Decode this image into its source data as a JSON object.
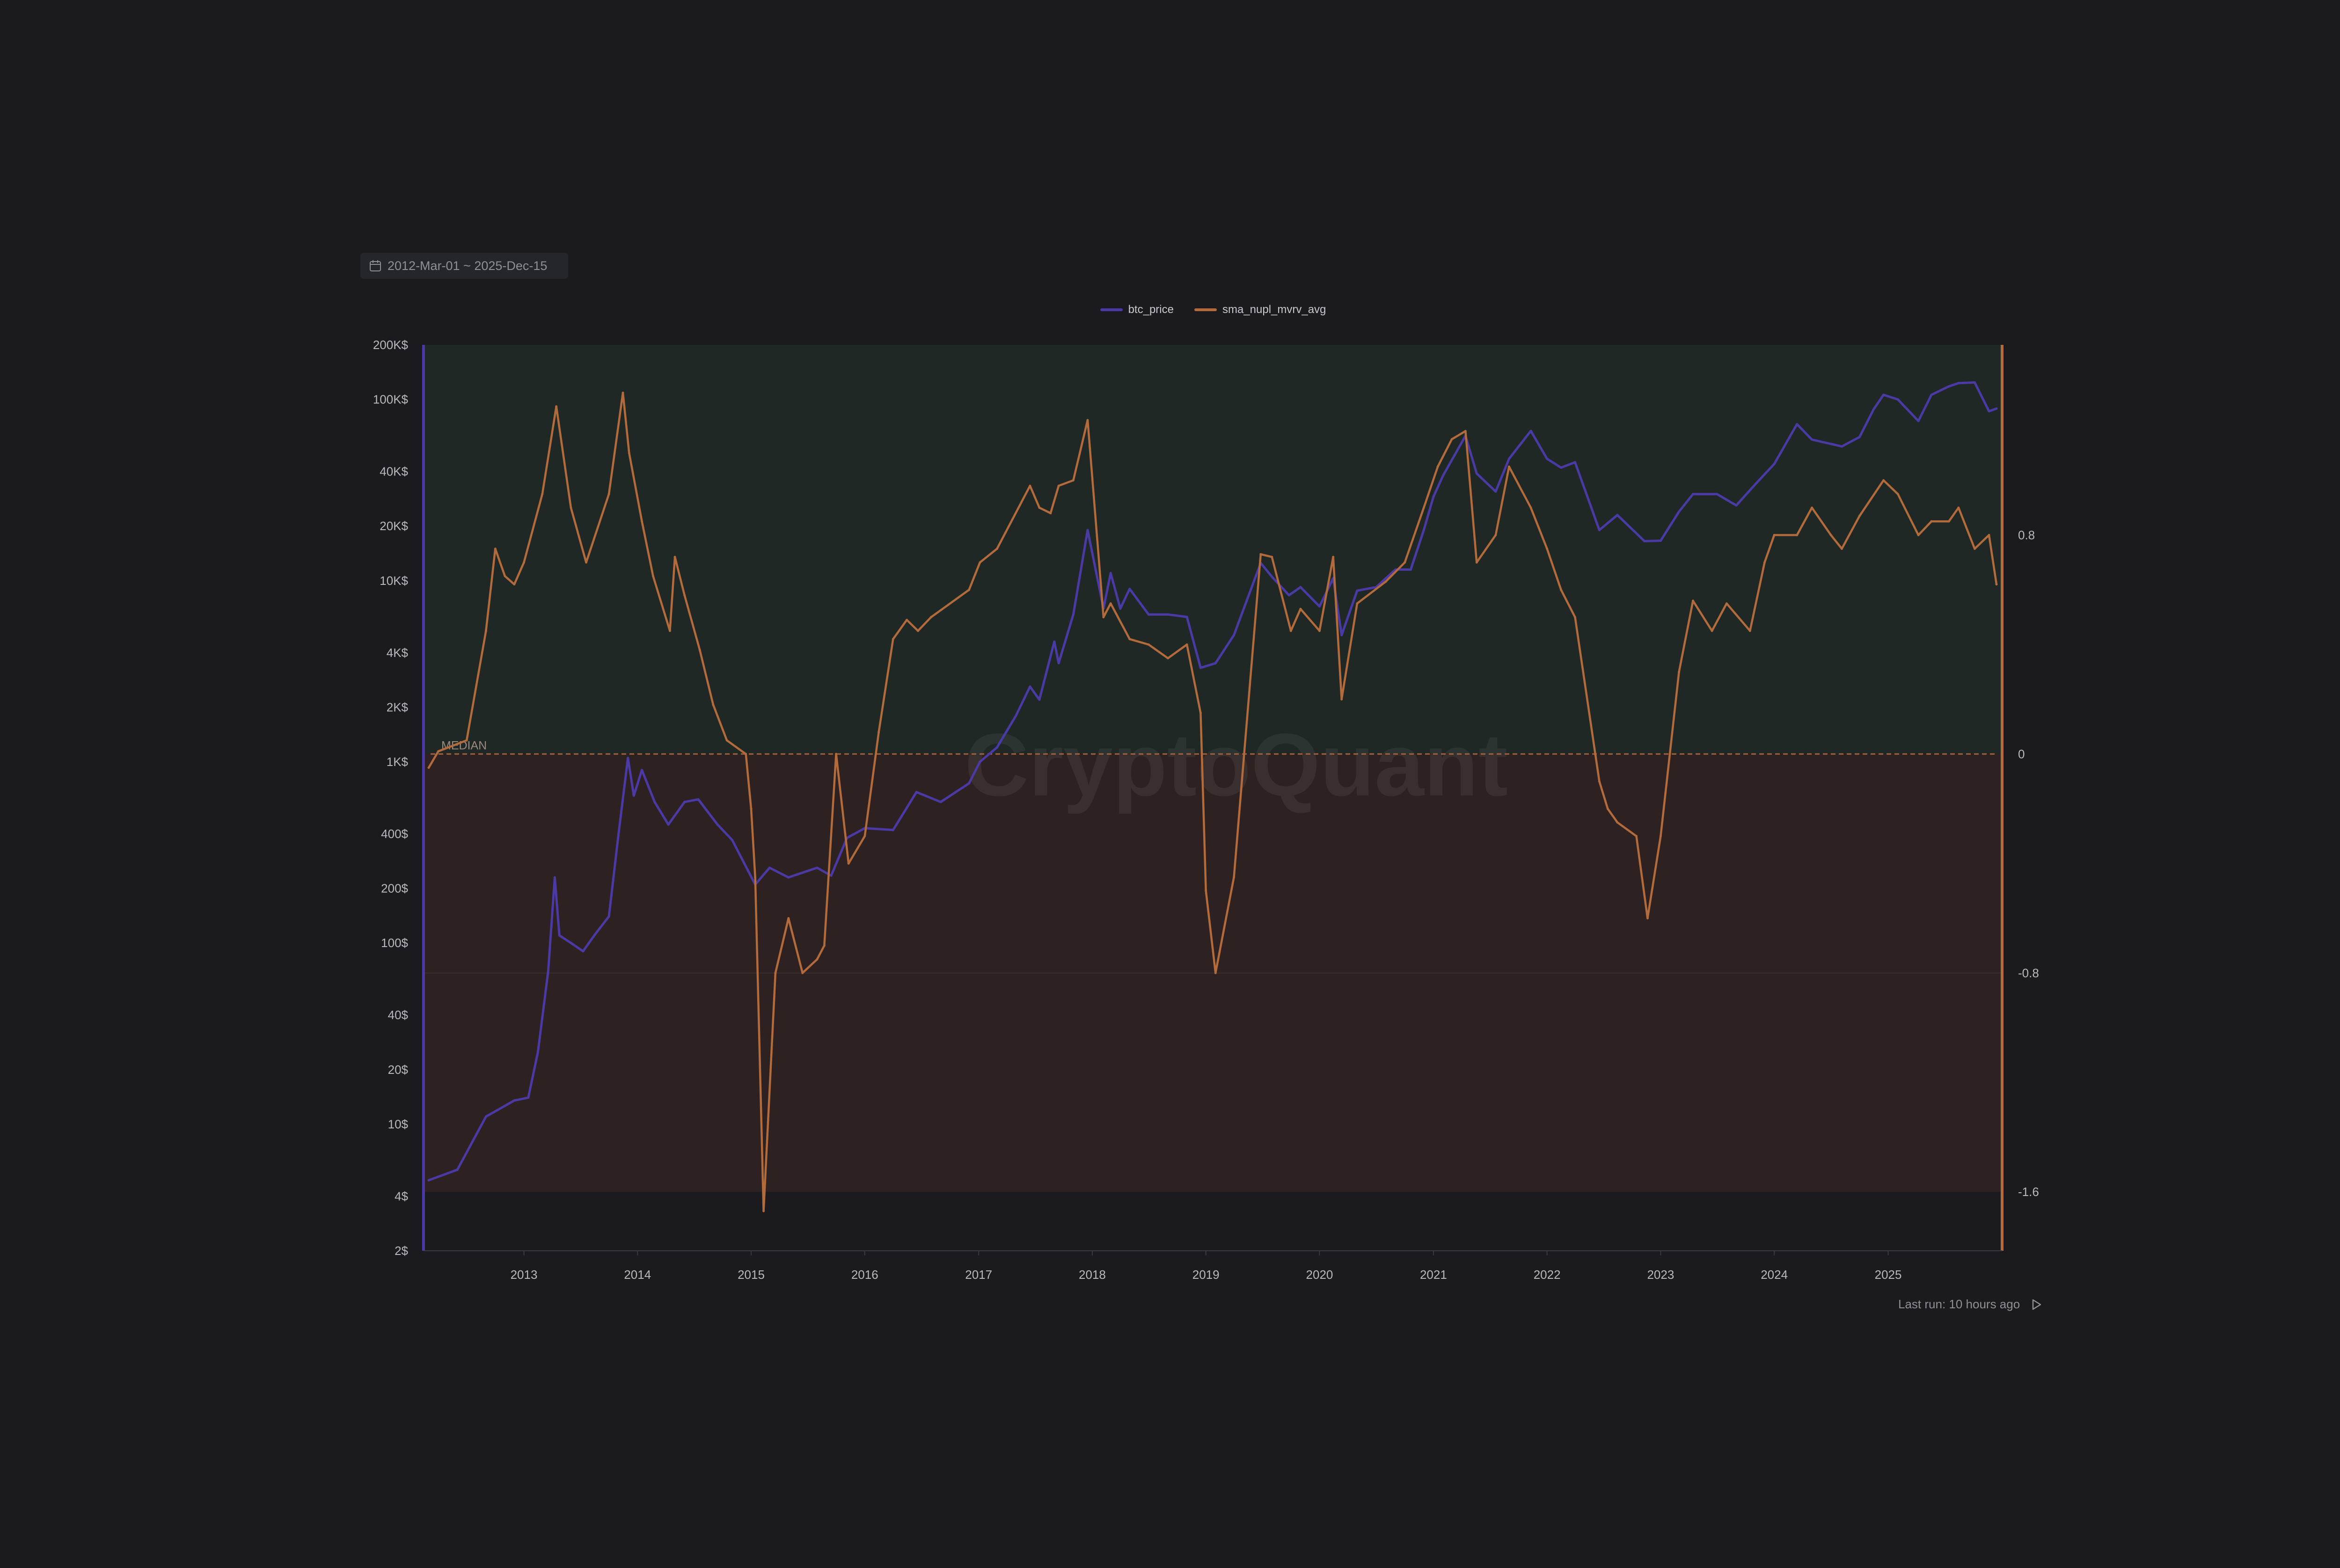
{
  "date_range": {
    "label": "2012-Mar-01 ~ 2025-Dec-15",
    "icon": "calendar-icon"
  },
  "footer": {
    "last_run": "Last run: 10 hours ago",
    "run_icon": "play-icon"
  },
  "colors": {
    "background": "#1a1a1f",
    "btc_price": "#4b3aa6",
    "sma_nupl_mvrv_avg": "#b36b3c",
    "zone_positive": "#1f2825",
    "zone_negative": "#2d2221",
    "median_line": "#a0603a"
  },
  "chart_data": {
    "type": "line",
    "watermark": "CryptoQuant",
    "legend": [
      "btc_price",
      "sma_nupl_mvrv_avg"
    ],
    "legend_position": "top-center",
    "x_ticks": [
      "2013",
      "2014",
      "2015",
      "2016",
      "2017",
      "2018",
      "2019",
      "2020",
      "2021",
      "2022",
      "2023",
      "2024",
      "2025"
    ],
    "xlim": [
      "2012-03-01",
      "2025-12-15"
    ],
    "y_left": {
      "scale": "log",
      "range": [
        2,
        200000
      ],
      "ticks": [
        2,
        4,
        10,
        20,
        40,
        100,
        200,
        400,
        1000,
        2000,
        4000,
        10000,
        20000,
        40000,
        100000,
        200000
      ],
      "tick_labels": [
        "2$",
        "4$",
        "10$",
        "20$",
        "40$",
        "100$",
        "200$",
        "400$",
        "1K$",
        "2K$",
        "4K$",
        "10K$",
        "20K$",
        "40K$",
        "100K$",
        "200K$"
      ]
    },
    "y_right": {
      "scale": "linear",
      "range": [
        -1.815,
        1.495
      ],
      "ticks": [
        0.8,
        0,
        -0.8,
        -1.6
      ],
      "tick_labels": [
        "0.8",
        "0",
        "-0.8",
        "-1.6"
      ]
    },
    "zones": [
      {
        "from": 0,
        "to": 1.495,
        "label": "positive"
      },
      {
        "from": -1.6,
        "to": 0,
        "label": "negative"
      }
    ],
    "median": {
      "label": "MEDIAN",
      "value": 0
    },
    "grid_lines": [
      -0.8
    ],
    "series": [
      {
        "name": "btc_price",
        "axis": "left",
        "x": [
          "2012-03-01",
          "2012-06-01",
          "2012-09-01",
          "2012-12-01",
          "2013-01-15",
          "2013-02-15",
          "2013-03-20",
          "2013-04-10",
          "2013-04-25",
          "2013-06-01",
          "2013-07-10",
          "2013-08-15",
          "2013-10-01",
          "2013-11-01",
          "2013-12-01",
          "2013-12-20",
          "2014-01-15",
          "2014-02-25",
          "2014-04-10",
          "2014-06-01",
          "2014-07-15",
          "2014-09-15",
          "2014-11-01",
          "2015-01-14",
          "2015-03-01",
          "2015-05-01",
          "2015-08-01",
          "2015-09-15",
          "2015-11-05",
          "2016-01-01",
          "2016-04-01",
          "2016-06-15",
          "2016-09-01",
          "2016-12-01",
          "2017-01-05",
          "2017-03-01",
          "2017-05-01",
          "2017-06-15",
          "2017-07-15",
          "2017-09-01",
          "2017-09-15",
          "2017-11-01",
          "2017-12-17",
          "2018-02-06",
          "2018-03-01",
          "2018-04-01",
          "2018-05-01",
          "2018-07-01",
          "2018-09-01",
          "2018-11-01",
          "2018-12-15",
          "2019-02-01",
          "2019-04-01",
          "2019-06-26",
          "2019-08-01",
          "2019-09-25",
          "2019-11-01",
          "2020-01-01",
          "2020-02-14",
          "2020-03-12",
          "2020-05-01",
          "2020-07-01",
          "2020-09-01",
          "2020-10-20",
          "2020-12-01",
          "2021-01-01",
          "2021-02-01",
          "2021-04-14",
          "2021-05-20",
          "2021-07-20",
          "2021-09-01",
          "2021-11-10",
          "2022-01-01",
          "2022-02-15",
          "2022-04-01",
          "2022-06-18",
          "2022-08-15",
          "2022-11-10",
          "2023-01-01",
          "2023-03-01",
          "2023-04-15",
          "2023-07-01",
          "2023-09-01",
          "2023-11-01",
          "2024-01-01",
          "2024-03-14",
          "2024-05-01",
          "2024-08-05",
          "2024-10-01",
          "2024-11-15",
          "2024-12-17",
          "2025-02-01",
          "2025-04-08",
          "2025-05-20",
          "2025-07-15",
          "2025-08-15",
          "2025-10-06",
          "2025-11-21",
          "2025-12-15"
        ],
        "values": [
          4.9,
          5.6,
          11,
          13.5,
          14,
          25,
          70,
          230,
          110,
          100,
          90,
          110,
          140,
          400,
          1050,
          650,
          900,
          600,
          450,
          600,
          620,
          450,
          370,
          210,
          260,
          230,
          260,
          235,
          380,
          430,
          420,
          680,
          600,
          760,
          1000,
          1200,
          1800,
          2600,
          2200,
          4600,
          3500,
          6500,
          19000,
          7000,
          11000,
          7000,
          9000,
          6500,
          6500,
          6300,
          3300,
          3500,
          5000,
          12500,
          10500,
          8300,
          9200,
          7200,
          10300,
          5000,
          8800,
          9200,
          11500,
          11500,
          19000,
          29000,
          38000,
          63000,
          39000,
          31000,
          47000,
          67000,
          47000,
          42000,
          45000,
          19000,
          23000,
          16500,
          16600,
          24000,
          30000,
          30000,
          26000,
          34000,
          44000,
          73000,
          60000,
          55000,
          62000,
          88000,
          106000,
          100000,
          76000,
          106000,
          118000,
          123000,
          124000,
          86000,
          89000
        ]
      },
      {
        "name": "sma_nupl_mvrv_avg",
        "axis": "right",
        "x": [
          "2012-03-01",
          "2012-04-01",
          "2012-07-01",
          "2012-09-01",
          "2012-10-01",
          "2012-11-01",
          "2012-12-01",
          "2013-01-01",
          "2013-03-01",
          "2013-04-15",
          "2013-06-01",
          "2013-07-20",
          "2013-10-01",
          "2013-11-15",
          "2013-12-05",
          "2014-01-15",
          "2014-02-20",
          "2014-04-15",
          "2014-05-01",
          "2014-06-01",
          "2014-07-20",
          "2014-09-01",
          "2014-10-15",
          "2014-12-15",
          "2015-01-01",
          "2015-01-14",
          "2015-02-10",
          "2015-03-20",
          "2015-05-01",
          "2015-06-15",
          "2015-08-01",
          "2015-08-24",
          "2015-10-01",
          "2015-11-10",
          "2016-01-01",
          "2016-02-15",
          "2016-04-01",
          "2016-05-15",
          "2016-06-20",
          "2016-08-01",
          "2016-12-01",
          "2017-01-05",
          "2017-03-01",
          "2017-06-15",
          "2017-07-15",
          "2017-08-20",
          "2017-09-15",
          "2017-11-01",
          "2017-12-17",
          "2018-02-06",
          "2018-03-01",
          "2018-05-01",
          "2018-07-01",
          "2018-09-01",
          "2018-11-01",
          "2018-12-15",
          "2019-01-01",
          "2019-02-01",
          "2019-04-01",
          "2019-06-26",
          "2019-08-01",
          "2019-10-01",
          "2019-11-01",
          "2020-01-01",
          "2020-02-14",
          "2020-03-12",
          "2020-05-01",
          "2020-08-01",
          "2020-10-01",
          "2020-12-01",
          "2021-01-15",
          "2021-03-01",
          "2021-04-14",
          "2021-05-20",
          "2021-07-20",
          "2021-09-01",
          "2021-11-10",
          "2022-01-01",
          "2022-02-15",
          "2022-04-01",
          "2022-06-18",
          "2022-07-15",
          "2022-08-15",
          "2022-10-15",
          "2022-11-20",
          "2023-01-01",
          "2023-03-01",
          "2023-04-15",
          "2023-06-15",
          "2023-08-01",
          "2023-10-15",
          "2023-12-01",
          "2024-01-01",
          "2024-03-14",
          "2024-05-01",
          "2024-07-01",
          "2024-08-05",
          "2024-10-01",
          "2024-12-17",
          "2025-02-01",
          "2025-04-08",
          "2025-05-20",
          "2025-07-15",
          "2025-08-15",
          "2025-10-06",
          "2025-11-21",
          "2025-12-15"
        ],
        "values": [
          -0.05,
          0.01,
          0.05,
          0.45,
          0.75,
          0.65,
          0.62,
          0.7,
          0.95,
          1.27,
          0.9,
          0.7,
          0.95,
          1.32,
          1.1,
          0.85,
          0.65,
          0.45,
          0.72,
          0.58,
          0.38,
          0.18,
          0.05,
          0.0,
          -0.2,
          -0.45,
          -1.67,
          -0.8,
          -0.6,
          -0.8,
          -0.75,
          -0.7,
          0.0,
          -0.4,
          -0.3,
          0.08,
          0.42,
          0.49,
          0.45,
          0.5,
          0.6,
          0.7,
          0.75,
          0.98,
          0.9,
          0.88,
          0.98,
          1.0,
          1.22,
          0.5,
          0.55,
          0.42,
          0.4,
          0.35,
          0.4,
          0.15,
          -0.5,
          -0.8,
          -0.45,
          0.73,
          0.72,
          0.45,
          0.53,
          0.45,
          0.72,
          0.2,
          0.55,
          0.63,
          0.7,
          0.9,
          1.05,
          1.15,
          1.18,
          0.7,
          0.8,
          1.05,
          0.9,
          0.75,
          0.6,
          0.5,
          -0.1,
          -0.2,
          -0.25,
          -0.3,
          -0.6,
          -0.3,
          0.3,
          0.56,
          0.45,
          0.55,
          0.45,
          0.7,
          0.8,
          0.8,
          0.9,
          0.8,
          0.75,
          0.87,
          1.0,
          0.95,
          0.8,
          0.85,
          0.85,
          0.9,
          0.75,
          0.8,
          0.62
        ]
      }
    ]
  }
}
